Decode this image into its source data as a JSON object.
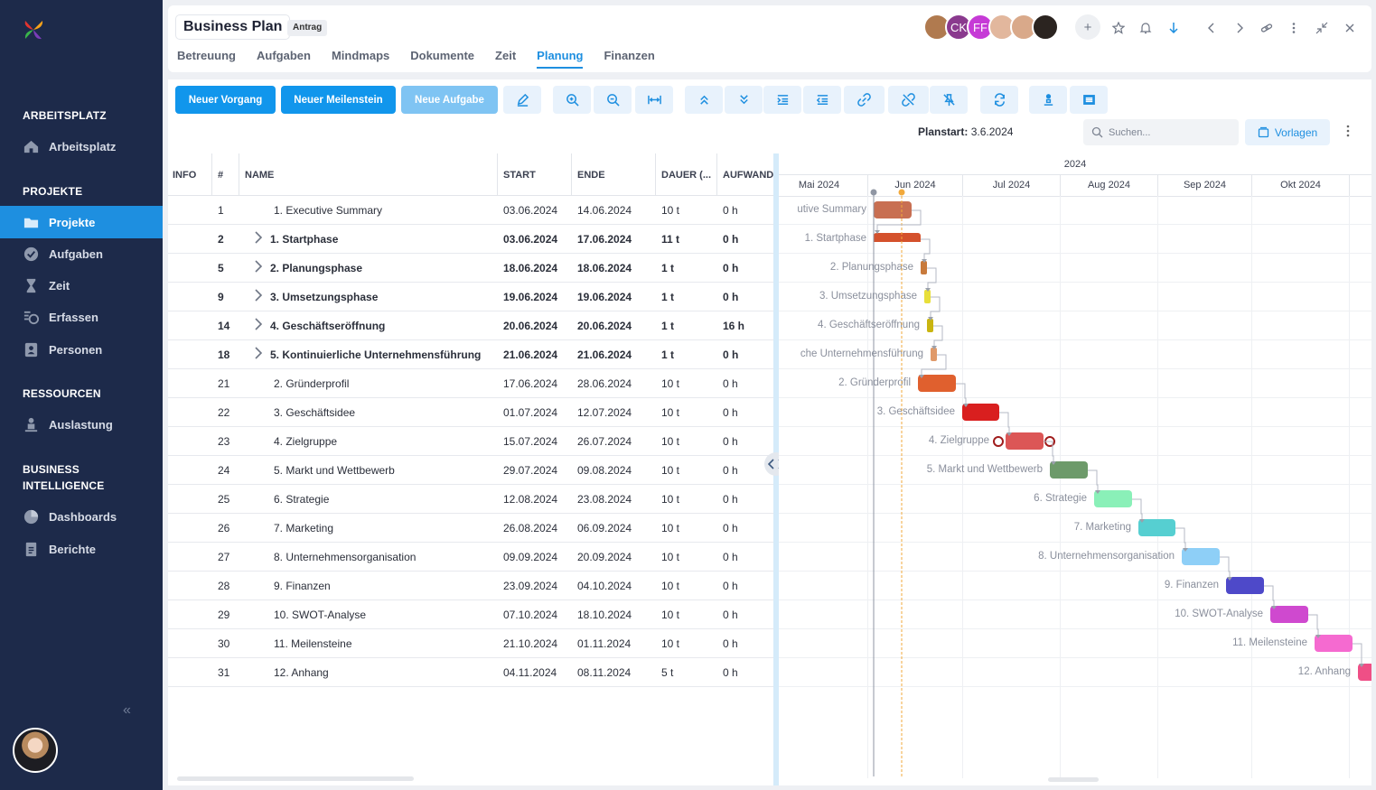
{
  "sidebar": {
    "sections": [
      {
        "title": "ARBEITSPLATZ",
        "items": [
          {
            "label": "Arbeitsplatz",
            "icon": "home-icon"
          }
        ]
      },
      {
        "title": "PROJEKTE",
        "items": [
          {
            "label": "Projekte",
            "icon": "folder-icon",
            "active": true
          },
          {
            "label": "Aufgaben",
            "icon": "check-circle-icon"
          },
          {
            "label": "Zeit",
            "icon": "hourglass-icon"
          },
          {
            "label": "Erfassen",
            "icon": "timer-icon"
          },
          {
            "label": "Personen",
            "icon": "contacts-icon"
          }
        ]
      },
      {
        "title": "RESSOURCEN",
        "items": [
          {
            "label": "Auslastung",
            "icon": "workload-icon"
          }
        ]
      },
      {
        "title": "BUSINESS INTELLIGENCE",
        "items": [
          {
            "label": "Dashboards",
            "icon": "pie-chart-icon"
          },
          {
            "label": "Berichte",
            "icon": "report-icon"
          }
        ]
      }
    ],
    "collapse_label": "«"
  },
  "header": {
    "title": "Business Plan",
    "badge": "Antrag",
    "tabs": [
      "Betreuung",
      "Aufgaben",
      "Mindmaps",
      "Dokumente",
      "Zeit",
      "Planung",
      "Finanzen"
    ],
    "active_tab": "Planung",
    "avatars": [
      {
        "initials": "",
        "color": "#b07a4f"
      },
      {
        "initials": "CK",
        "color": "#8a3a8e"
      },
      {
        "initials": "FF",
        "color": "#c63bd6"
      },
      {
        "initials": "",
        "color": "#e2b79d"
      },
      {
        "initials": "",
        "color": "#d9a98a"
      },
      {
        "initials": "",
        "color": "#2b2420"
      }
    ],
    "add_label": "+"
  },
  "toolbar": {
    "new_process": "Neuer Vorgang",
    "new_milestone": "Neuer Meilenstein",
    "new_task": "Neue Aufgabe",
    "planstart_label": "Planstart:",
    "planstart_value": "3.6.2024",
    "search_placeholder": "Suchen...",
    "templates_label": "Vorlagen"
  },
  "grid": {
    "columns": [
      "INFO",
      "#",
      "NAME",
      "START",
      "ENDE",
      "DAUER (...",
      "AUFWAND"
    ],
    "rows": [
      {
        "id": "1",
        "name": "1. Executive Summary",
        "start": "03.06.2024",
        "end": "14.06.2024",
        "duration": "10 t",
        "effort": "0 h",
        "group": false
      },
      {
        "id": "2",
        "name": "1. Startphase",
        "start": "03.06.2024",
        "end": "17.06.2024",
        "duration": "11 t",
        "effort": "0 h",
        "group": true
      },
      {
        "id": "5",
        "name": "2. Planungsphase",
        "start": "18.06.2024",
        "end": "18.06.2024",
        "duration": "1 t",
        "effort": "0 h",
        "group": true
      },
      {
        "id": "9",
        "name": "3. Umsetzungsphase",
        "start": "19.06.2024",
        "end": "19.06.2024",
        "duration": "1 t",
        "effort": "0 h",
        "group": true
      },
      {
        "id": "14",
        "name": "4. Geschäftseröffnung",
        "start": "20.06.2024",
        "end": "20.06.2024",
        "duration": "1 t",
        "effort": "16 h",
        "group": true
      },
      {
        "id": "18",
        "name": "5. Kontinuierliche Unternehmensführung",
        "start": "21.06.2024",
        "end": "21.06.2024",
        "duration": "1 t",
        "effort": "0 h",
        "group": true
      },
      {
        "id": "21",
        "name": "2. Gründerprofil",
        "start": "17.06.2024",
        "end": "28.06.2024",
        "duration": "10 t",
        "effort": "0 h",
        "group": false
      },
      {
        "id": "22",
        "name": "3. Geschäftsidee",
        "start": "01.07.2024",
        "end": "12.07.2024",
        "duration": "10 t",
        "effort": "0 h",
        "group": false
      },
      {
        "id": "23",
        "name": "4. Zielgruppe",
        "start": "15.07.2024",
        "end": "26.07.2024",
        "duration": "10 t",
        "effort": "0 h",
        "group": false
      },
      {
        "id": "24",
        "name": "5. Markt und Wettbewerb",
        "start": "29.07.2024",
        "end": "09.08.2024",
        "duration": "10 t",
        "effort": "0 h",
        "group": false
      },
      {
        "id": "25",
        "name": "6. Strategie",
        "start": "12.08.2024",
        "end": "23.08.2024",
        "duration": "10 t",
        "effort": "0 h",
        "group": false
      },
      {
        "id": "26",
        "name": "7. Marketing",
        "start": "26.08.2024",
        "end": "06.09.2024",
        "duration": "10 t",
        "effort": "0 h",
        "group": false
      },
      {
        "id": "27",
        "name": "8. Unternehmensorganisation",
        "start": "09.09.2024",
        "end": "20.09.2024",
        "duration": "10 t",
        "effort": "0 h",
        "group": false
      },
      {
        "id": "28",
        "name": "9. Finanzen",
        "start": "23.09.2024",
        "end": "04.10.2024",
        "duration": "10 t",
        "effort": "0 h",
        "group": false
      },
      {
        "id": "29",
        "name": "10. SWOT-Analyse",
        "start": "07.10.2024",
        "end": "18.10.2024",
        "duration": "10 t",
        "effort": "0 h",
        "group": false
      },
      {
        "id": "30",
        "name": "11. Meilensteine",
        "start": "21.10.2024",
        "end": "01.11.2024",
        "duration": "10 t",
        "effort": "0 h",
        "group": false
      },
      {
        "id": "31",
        "name": "12. Anhang",
        "start": "04.11.2024",
        "end": "08.11.2024",
        "duration": "5 t",
        "effort": "0 h",
        "group": false
      }
    ]
  },
  "gantt": {
    "year": "2024",
    "months": [
      "Mai 2024",
      "Jun 2024",
      "Jul 2024",
      "Aug 2024",
      "Sep 2024",
      "Okt 2024"
    ],
    "task_labels": [
      "utive Summary",
      "1. Startphase",
      "2. Planungsphase",
      "3. Umsetzungsphase",
      "4. Geschäftseröffnung",
      "che Unternehmensführung",
      "2. Gründerprofil",
      "3. Geschäftsidee",
      "4. Zielgruppe",
      "5. Markt und Wettbewerb",
      "6. Strategie",
      "7. Marketing",
      "8. Unternehmensorganisation",
      "9. Finanzen",
      "10. SWOT-Analyse",
      "11. Meilensteine",
      "12. Anhang"
    ],
    "bar_colors": [
      "#c86f52",
      "#d4512c",
      "#c87a3c",
      "#e8df3a",
      "#c9b510",
      "#e09a6a",
      "#e0602e",
      "#d91f1f",
      "#dc5656",
      "#6d9a6a",
      "#8af0b8",
      "#56cfd1",
      "#8ecff7",
      "#4e49c9",
      "#cf49cf",
      "#f56ad0",
      "#ef4f86"
    ]
  }
}
